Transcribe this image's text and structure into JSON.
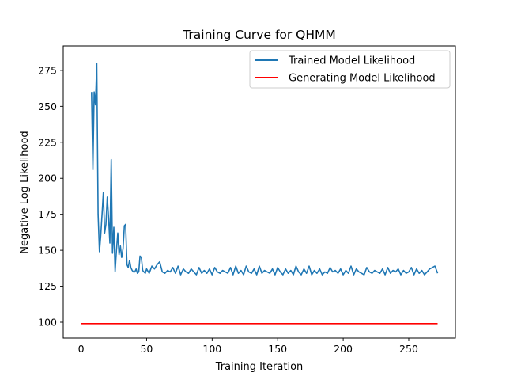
{
  "chart_data": {
    "type": "line",
    "title": "Training Curve for QHMM",
    "xlabel": "Training Iteration",
    "ylabel": "Negative Log Likelihood",
    "xlim": [
      -13.6,
      285.6
    ],
    "ylim": [
      89,
      292
    ],
    "xticks": [
      0,
      50,
      100,
      150,
      200,
      250
    ],
    "yticks": [
      100,
      125,
      150,
      175,
      200,
      225,
      250,
      275
    ],
    "legend_position": "upper right",
    "grid": false,
    "series": [
      {
        "name": "Trained Model Likelihood",
        "color": "#1f77b4",
        "x": [
          8,
          9,
          10,
          11,
          12,
          13,
          14,
          15,
          16,
          17,
          18,
          19,
          20,
          21,
          22,
          23,
          24,
          25,
          26,
          27,
          28,
          29,
          30,
          31,
          32,
          33,
          34,
          35,
          36,
          37,
          38,
          39,
          40,
          41,
          42,
          43,
          44,
          45,
          46,
          47,
          48,
          49,
          50,
          52,
          54,
          56,
          58,
          60,
          62,
          64,
          66,
          68,
          70,
          72,
          74,
          76,
          78,
          80,
          82,
          84,
          86,
          88,
          90,
          92,
          94,
          96,
          98,
          100,
          102,
          104,
          106,
          108,
          110,
          112,
          114,
          116,
          118,
          120,
          122,
          124,
          126,
          128,
          130,
          132,
          134,
          136,
          138,
          140,
          142,
          144,
          146,
          148,
          150,
          152,
          154,
          156,
          158,
          160,
          162,
          164,
          166,
          168,
          170,
          172,
          174,
          176,
          178,
          180,
          182,
          184,
          186,
          188,
          190,
          192,
          194,
          196,
          198,
          200,
          202,
          204,
          206,
          208,
          210,
          212,
          214,
          216,
          218,
          220,
          222,
          224,
          226,
          228,
          230,
          232,
          234,
          236,
          238,
          240,
          242,
          244,
          246,
          248,
          250,
          252,
          254,
          256,
          258,
          260,
          262,
          264,
          266,
          268,
          270,
          272
        ],
        "y": [
          260,
          206,
          260,
          251,
          280,
          175,
          149,
          160,
          175,
          190,
          162,
          168,
          187,
          172,
          155,
          213,
          148,
          166,
          135,
          150,
          162,
          147,
          153,
          145,
          151,
          167,
          168,
          140,
          138,
          143,
          138,
          136,
          135,
          135,
          137,
          134,
          135,
          146,
          145,
          136,
          135,
          134,
          137,
          134,
          139,
          137,
          140,
          142,
          135,
          134,
          136,
          135,
          138,
          134,
          139,
          133,
          137,
          135,
          134,
          137,
          135,
          133,
          138,
          134,
          136,
          134,
          137,
          133,
          138,
          135,
          134,
          136,
          135,
          134,
          138,
          133,
          139,
          134,
          136,
          133,
          139,
          135,
          134,
          137,
          133,
          139,
          134,
          136,
          135,
          134,
          137,
          133,
          138,
          135,
          133,
          137,
          134,
          136,
          133,
          139,
          135,
          133,
          137,
          134,
          139,
          133,
          136,
          134,
          137,
          133,
          135,
          134,
          138,
          135,
          136,
          134,
          137,
          133,
          136,
          134,
          139,
          133,
          137,
          135,
          134,
          133,
          138,
          135,
          134,
          136,
          135,
          134,
          137,
          133,
          138,
          134,
          136,
          135,
          137,
          133,
          136,
          134,
          135,
          138,
          133,
          137,
          134,
          136,
          133,
          135,
          137,
          138,
          139,
          134
        ]
      },
      {
        "name": "Generating Model Likelihood",
        "color": "#ff0000",
        "x": [
          0,
          272
        ],
        "y": [
          99,
          99
        ]
      }
    ]
  }
}
